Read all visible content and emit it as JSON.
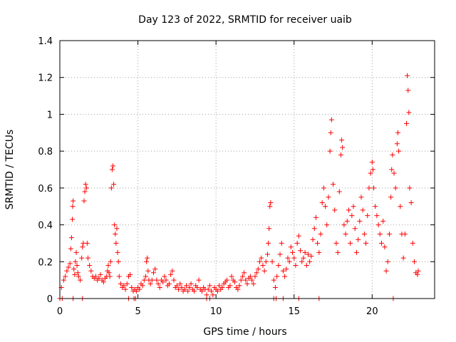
{
  "chart_data": {
    "type": "scatter",
    "title": "Day 123 of 2022, SRMTID for receiver uaib",
    "xlabel": "GPS time / hours",
    "ylabel": "SRMTID / TECUs",
    "xlim": [
      0,
      24
    ],
    "ylim": [
      0,
      1.4
    ],
    "xticks": [
      0,
      5,
      10,
      15,
      20
    ],
    "yticks": [
      0,
      0.2,
      0.4,
      0.6,
      0.8,
      1,
      1.2,
      1.4
    ],
    "xtick_labels": [
      "0",
      "5",
      "10",
      "15",
      "20"
    ],
    "ytick_labels": [
      "0",
      "0.2",
      "0.4",
      "0.6",
      "0.8",
      "1",
      "1.2",
      "1.4"
    ],
    "grid": true,
    "marker": "plus",
    "color": "#ff0000",
    "series": [
      {
        "name": "SRMTID",
        "points": [
          [
            0.1,
            0.06
          ],
          [
            0.25,
            0.1
          ],
          [
            0.35,
            0.12
          ],
          [
            0.45,
            0.15
          ],
          [
            0.55,
            0.17
          ],
          [
            0.65,
            0.19
          ],
          [
            0.7,
            0.27
          ],
          [
            0.75,
            0.33
          ],
          [
            0.8,
            0.43
          ],
          [
            0.82,
            0.5
          ],
          [
            0.85,
            0.53
          ],
          [
            0.9,
            0.16
          ],
          [
            0.95,
            0.13
          ],
          [
            1.0,
            0.2
          ],
          [
            1.05,
            0.25
          ],
          [
            1.1,
            0.18
          ],
          [
            1.15,
            0.14
          ],
          [
            1.2,
            0.12
          ],
          [
            1.3,
            0.1
          ],
          [
            1.4,
            0.22
          ],
          [
            1.45,
            0.28
          ],
          [
            1.5,
            0.3
          ],
          [
            1.55,
            0.53
          ],
          [
            1.6,
            0.58
          ],
          [
            1.65,
            0.62
          ],
          [
            1.7,
            0.6
          ],
          [
            1.75,
            0.3
          ],
          [
            1.8,
            0.22
          ],
          [
            1.9,
            0.18
          ],
          [
            2.0,
            0.15
          ],
          [
            2.1,
            0.12
          ],
          [
            2.2,
            0.11
          ],
          [
            2.3,
            0.12
          ],
          [
            2.4,
            0.1
          ],
          [
            2.5,
            0.11
          ],
          [
            2.6,
            0.13
          ],
          [
            2.7,
            0.1
          ],
          [
            2.8,
            0.09
          ],
          [
            2.9,
            0.11
          ],
          [
            3.0,
            0.12
          ],
          [
            3.05,
            0.15
          ],
          [
            3.1,
            0.18
          ],
          [
            3.15,
            0.14
          ],
          [
            3.2,
            0.12
          ],
          [
            3.25,
            0.2
          ],
          [
            3.3,
            0.6
          ],
          [
            3.35,
            0.7
          ],
          [
            3.4,
            0.72
          ],
          [
            3.45,
            0.62
          ],
          [
            3.5,
            0.4
          ],
          [
            3.55,
            0.35
          ],
          [
            3.6,
            0.3
          ],
          [
            3.65,
            0.38
          ],
          [
            3.7,
            0.25
          ],
          [
            3.75,
            0.2
          ],
          [
            3.8,
            0.12
          ],
          [
            3.9,
            0.08
          ],
          [
            4.0,
            0.06
          ],
          [
            4.1,
            0.07
          ],
          [
            4.2,
            0.05
          ],
          [
            4.3,
            0.08
          ],
          [
            4.4,
            0.12
          ],
          [
            4.5,
            0.13
          ],
          [
            4.6,
            0.06
          ],
          [
            4.7,
            0.04
          ],
          [
            4.8,
            0.05
          ],
          [
            4.9,
            0.04
          ],
          [
            5.0,
            0.06
          ],
          [
            5.1,
            0.05
          ],
          [
            5.2,
            0.08
          ],
          [
            5.3,
            0.07
          ],
          [
            5.4,
            0.1
          ],
          [
            5.5,
            0.12
          ],
          [
            5.55,
            0.2
          ],
          [
            5.6,
            0.22
          ],
          [
            5.65,
            0.15
          ],
          [
            5.7,
            0.1
          ],
          [
            5.8,
            0.08
          ],
          [
            5.9,
            0.1
          ],
          [
            6.0,
            0.14
          ],
          [
            6.1,
            0.16
          ],
          [
            6.2,
            0.1
          ],
          [
            6.3,
            0.08
          ],
          [
            6.4,
            0.06
          ],
          [
            6.5,
            0.1
          ],
          [
            6.6,
            0.09
          ],
          [
            6.7,
            0.12
          ],
          [
            6.8,
            0.1
          ],
          [
            6.9,
            0.07
          ],
          [
            7.0,
            0.08
          ],
          [
            7.1,
            0.13
          ],
          [
            7.2,
            0.15
          ],
          [
            7.3,
            0.1
          ],
          [
            7.4,
            0.06
          ],
          [
            7.5,
            0.07
          ],
          [
            7.6,
            0.05
          ],
          [
            7.7,
            0.08
          ],
          [
            7.8,
            0.06
          ],
          [
            7.9,
            0.04
          ],
          [
            8.0,
            0.05
          ],
          [
            8.1,
            0.07
          ],
          [
            8.2,
            0.04
          ],
          [
            8.3,
            0.06
          ],
          [
            8.4,
            0.08
          ],
          [
            8.5,
            0.05
          ],
          [
            8.6,
            0.04
          ],
          [
            8.7,
            0.07
          ],
          [
            8.8,
            0.06
          ],
          [
            8.9,
            0.1
          ],
          [
            9.0,
            0.05
          ],
          [
            9.1,
            0.04
          ],
          [
            9.2,
            0.06
          ],
          [
            9.3,
            0.05
          ],
          [
            9.4,
            0.02
          ],
          [
            9.5,
            0.05
          ],
          [
            9.6,
            0.07
          ],
          [
            9.7,
            0.04
          ],
          [
            9.8,
            0.02
          ],
          [
            9.9,
            0.06
          ],
          [
            10.0,
            0.05
          ],
          [
            10.1,
            0.04
          ],
          [
            10.2,
            0.07
          ],
          [
            10.3,
            0.05
          ],
          [
            10.4,
            0.06
          ],
          [
            10.5,
            0.08
          ],
          [
            10.6,
            0.09
          ],
          [
            10.7,
            0.1
          ],
          [
            10.8,
            0.06
          ],
          [
            10.9,
            0.07
          ],
          [
            11.0,
            0.12
          ],
          [
            11.1,
            0.1
          ],
          [
            11.2,
            0.09
          ],
          [
            11.3,
            0.06
          ],
          [
            11.4,
            0.05
          ],
          [
            11.5,
            0.07
          ],
          [
            11.6,
            0.1
          ],
          [
            11.7,
            0.12
          ],
          [
            11.8,
            0.14
          ],
          [
            11.9,
            0.1
          ],
          [
            12.0,
            0.08
          ],
          [
            12.1,
            0.11
          ],
          [
            12.2,
            0.12
          ],
          [
            12.3,
            0.1
          ],
          [
            12.4,
            0.08
          ],
          [
            12.5,
            0.12
          ],
          [
            12.6,
            0.14
          ],
          [
            12.7,
            0.16
          ],
          [
            12.8,
            0.2
          ],
          [
            12.9,
            0.22
          ],
          [
            13.0,
            0.18
          ],
          [
            13.1,
            0.15
          ],
          [
            13.2,
            0.2
          ],
          [
            13.3,
            0.24
          ],
          [
            13.35,
            0.3
          ],
          [
            13.4,
            0.38
          ],
          [
            13.45,
            0.5
          ],
          [
            13.5,
            0.52
          ],
          [
            13.6,
            0.2
          ],
          [
            13.7,
            0.1
          ],
          [
            13.8,
            0.06
          ],
          [
            13.9,
            0.12
          ],
          [
            14.0,
            0.18
          ],
          [
            14.1,
            0.24
          ],
          [
            14.2,
            0.3
          ],
          [
            14.3,
            0.15
          ],
          [
            14.4,
            0.12
          ],
          [
            14.5,
            0.16
          ],
          [
            14.6,
            0.22
          ],
          [
            14.7,
            0.2
          ],
          [
            14.8,
            0.28
          ],
          [
            14.9,
            0.25
          ],
          [
            15.0,
            0.22
          ],
          [
            15.1,
            0.18
          ],
          [
            15.2,
            0.3
          ],
          [
            15.3,
            0.34
          ],
          [
            15.4,
            0.26
          ],
          [
            15.5,
            0.2
          ],
          [
            15.6,
            0.22
          ],
          [
            15.7,
            0.25
          ],
          [
            15.8,
            0.18
          ],
          [
            15.9,
            0.24
          ],
          [
            16.0,
            0.2
          ],
          [
            16.1,
            0.23
          ],
          [
            16.2,
            0.32
          ],
          [
            16.3,
            0.38
          ],
          [
            16.4,
            0.44
          ],
          [
            16.5,
            0.3
          ],
          [
            16.6,
            0.25
          ],
          [
            16.7,
            0.35
          ],
          [
            16.8,
            0.52
          ],
          [
            16.9,
            0.6
          ],
          [
            17.0,
            0.5
          ],
          [
            17.1,
            0.4
          ],
          [
            17.2,
            0.55
          ],
          [
            17.3,
            0.8
          ],
          [
            17.35,
            0.9
          ],
          [
            17.4,
            0.97
          ],
          [
            17.5,
            0.62
          ],
          [
            17.6,
            0.48
          ],
          [
            17.7,
            0.3
          ],
          [
            17.8,
            0.25
          ],
          [
            17.9,
            0.58
          ],
          [
            18.0,
            0.78
          ],
          [
            18.05,
            0.86
          ],
          [
            18.1,
            0.82
          ],
          [
            18.2,
            0.4
          ],
          [
            18.3,
            0.35
          ],
          [
            18.4,
            0.42
          ],
          [
            18.5,
            0.48
          ],
          [
            18.6,
            0.3
          ],
          [
            18.7,
            0.45
          ],
          [
            18.8,
            0.5
          ],
          [
            18.9,
            0.38
          ],
          [
            19.0,
            0.25
          ],
          [
            19.1,
            0.32
          ],
          [
            19.2,
            0.42
          ],
          [
            19.3,
            0.55
          ],
          [
            19.4,
            0.48
          ],
          [
            19.5,
            0.35
          ],
          [
            19.6,
            0.3
          ],
          [
            19.7,
            0.45
          ],
          [
            19.8,
            0.6
          ],
          [
            19.9,
            0.68
          ],
          [
            20.0,
            0.74
          ],
          [
            20.05,
            0.7
          ],
          [
            20.1,
            0.6
          ],
          [
            20.2,
            0.5
          ],
          [
            20.3,
            0.45
          ],
          [
            20.4,
            0.4
          ],
          [
            20.5,
            0.35
          ],
          [
            20.6,
            0.3
          ],
          [
            20.7,
            0.42
          ],
          [
            20.8,
            0.28
          ],
          [
            20.9,
            0.15
          ],
          [
            21.0,
            0.2
          ],
          [
            21.1,
            0.35
          ],
          [
            21.2,
            0.55
          ],
          [
            21.25,
            0.7
          ],
          [
            21.3,
            0.78
          ],
          [
            21.4,
            0.68
          ],
          [
            21.5,
            0.6
          ],
          [
            21.6,
            0.84
          ],
          [
            21.65,
            0.9
          ],
          [
            21.7,
            0.8
          ],
          [
            21.8,
            0.5
          ],
          [
            21.9,
            0.35
          ],
          [
            22.0,
            0.22
          ],
          [
            22.1,
            0.35
          ],
          [
            22.2,
            0.95
          ],
          [
            22.25,
            1.21
          ],
          [
            22.3,
            1.13
          ],
          [
            22.35,
            1.01
          ],
          [
            22.4,
            0.6
          ],
          [
            22.5,
            0.52
          ],
          [
            22.6,
            0.3
          ],
          [
            22.7,
            0.2
          ],
          [
            22.8,
            0.14
          ],
          [
            22.9,
            0.13
          ],
          [
            22.95,
            0.15
          ],
          [
            0.0,
            0.0
          ],
          [
            0.15,
            0.0
          ],
          [
            0.85,
            0.0
          ],
          [
            1.45,
            0.0
          ],
          [
            4.4,
            0.0
          ],
          [
            4.75,
            0.0
          ],
          [
            4.85,
            0.0
          ],
          [
            9.4,
            0.0
          ],
          [
            9.6,
            0.0
          ],
          [
            13.7,
            0.0
          ],
          [
            13.85,
            0.0
          ],
          [
            14.3,
            0.0
          ],
          [
            15.3,
            0.0
          ],
          [
            16.6,
            0.0
          ],
          [
            21.35,
            0.0
          ]
        ]
      }
    ]
  }
}
